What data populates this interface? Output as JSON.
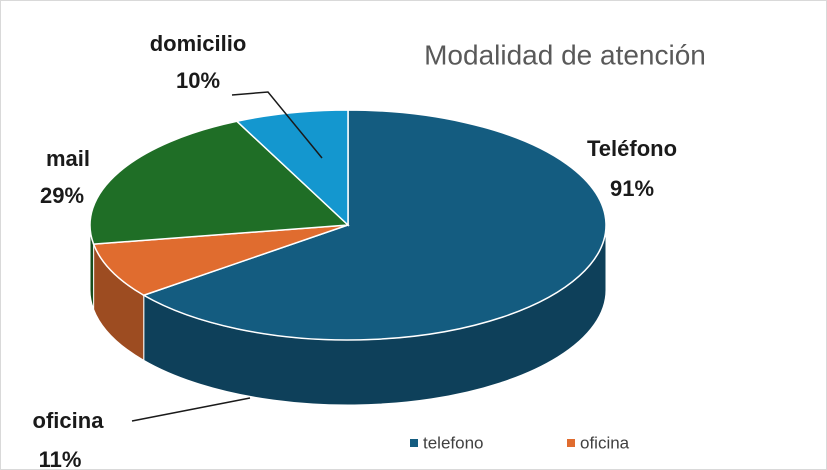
{
  "chart_data": {
    "type": "pie3d",
    "title": "Modalidad de atención",
    "categories": [
      "Teléfono",
      "oficina",
      "mail",
      "domicilio"
    ],
    "values": [
      91,
      11,
      29,
      10
    ],
    "value_labels": [
      "91%",
      "11%",
      "29%",
      "10%"
    ],
    "colors": [
      "#145c80",
      "#e06c2f",
      "#1f6e26",
      "#1497cf"
    ],
    "legend": [
      "telefono",
      "oficina"
    ]
  }
}
